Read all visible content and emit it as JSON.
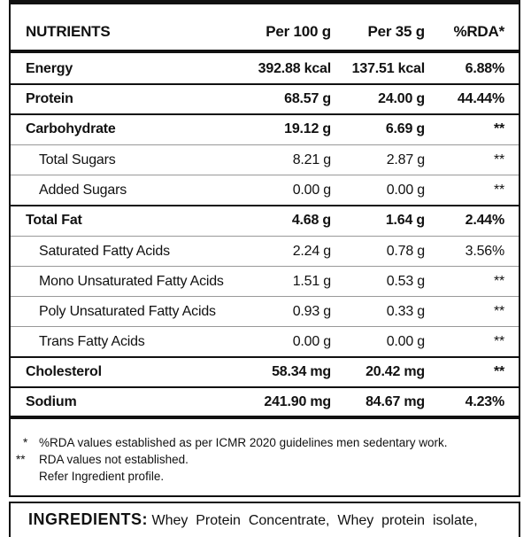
{
  "table": {
    "headers": [
      "NUTRIENTS",
      "Per 100 g",
      "Per 35 g",
      "%RDA*"
    ],
    "rows": [
      {
        "name": "Energy",
        "per100": "392.88 kcal",
        "per35": "137.51 kcal",
        "rda": "6.88%",
        "bold": true,
        "indent": false
      },
      {
        "name": "Protein",
        "per100": "68.57 g",
        "per35": "24.00 g",
        "rda": "44.44%",
        "bold": true,
        "indent": false
      },
      {
        "name": "Carbohydrate",
        "per100": "19.12 g",
        "per35": "6.69 g",
        "rda": "**",
        "bold": true,
        "indent": false
      },
      {
        "name": "Total Sugars",
        "per100": "8.21 g",
        "per35": "2.87 g",
        "rda": "**",
        "bold": false,
        "indent": true
      },
      {
        "name": "Added Sugars",
        "per100": "0.00 g",
        "per35": "0.00 g",
        "rda": "**",
        "bold": false,
        "indent": true
      },
      {
        "name": "Total Fat",
        "per100": "4.68 g",
        "per35": "1.64 g",
        "rda": "2.44%",
        "bold": true,
        "indent": false
      },
      {
        "name": "Saturated Fatty Acids",
        "per100": "2.24 g",
        "per35": "0.78 g",
        "rda": "3.56%",
        "bold": false,
        "indent": true
      },
      {
        "name": "Mono Unsaturated Fatty Acids",
        "per100": "1.51 g",
        "per35": "0.53 g",
        "rda": "**",
        "bold": false,
        "indent": true
      },
      {
        "name": "Poly Unsaturated Fatty Acids",
        "per100": "0.93 g",
        "per35": "0.33 g",
        "rda": "**",
        "bold": false,
        "indent": true
      },
      {
        "name": "Trans Fatty Acids",
        "per100": "0.00 g",
        "per35": "0.00 g",
        "rda": "**",
        "bold": false,
        "indent": true
      },
      {
        "name": "Cholesterol",
        "per100": "58.34 mg",
        "per35": "20.42 mg",
        "rda": "**",
        "bold": true,
        "indent": false
      },
      {
        "name": "Sodium",
        "per100": "241.90 mg",
        "per35": "84.67 mg",
        "rda": "4.23%",
        "bold": true,
        "indent": false
      }
    ]
  },
  "notes": [
    {
      "mark": "*",
      "text": "%RDA values established as per ICMR 2020 guidelines men sedentary work."
    },
    {
      "mark": "**",
      "text": "RDA values not established."
    },
    {
      "mark": "",
      "text": "Refer Ingredient profile."
    }
  ],
  "ingredients": {
    "label": "INGREDIENTS:",
    "text": " Whey  Protein  Concentrate,  Whey  protein  isolate,"
  }
}
